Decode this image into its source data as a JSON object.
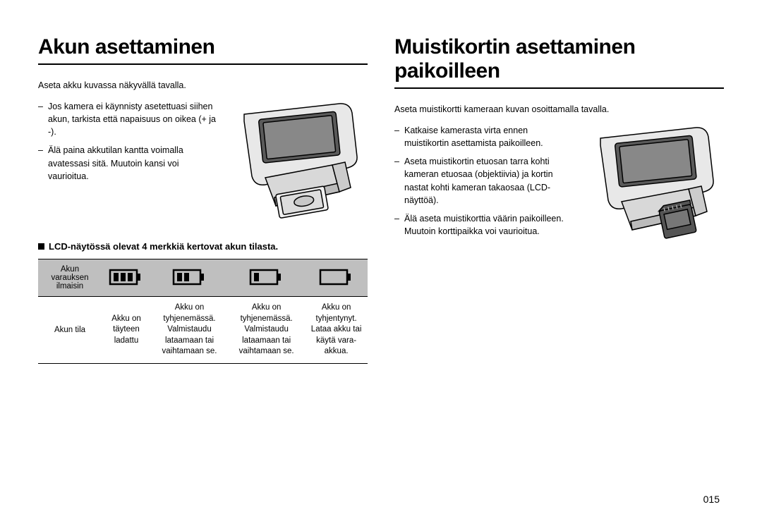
{
  "pageNumber": "015",
  "left": {
    "heading": "Akun asettaminen",
    "intro": "Aseta akku kuvassa näkyvällä tavalla.",
    "bullets": [
      "Jos kamera ei käynnisty asetettuasi siihen akun, tarkista että napaisuus on oikea (+ ja -).",
      "Älä paina akkutilan kantta voimalla avatessasi sitä. Muutoin kansi voi vaurioitua."
    ],
    "subheading": "LCD-näytössä olevat 4 merkkiä kertovat akun tilasta.",
    "table": {
      "row1_label": "Akun varauksen ilmaisin",
      "row2_label": "Akun tila",
      "cells": [
        "Akku on täyteen ladattu",
        "Akku on tyhjenemässä. Valmistaudu lataamaan tai vaihtamaan se.",
        "Akku on tyhjenemässä. Valmistaudu lataamaan tai vaihtamaan se.",
        "Akku on tyhjentynyt. Lataa akku tai käytä vara-akkua."
      ],
      "battery_levels": [
        3,
        2,
        1,
        0
      ],
      "header_bg": "#bfbfbf"
    }
  },
  "right": {
    "heading": "Muistikortin asettaminen paikoilleen",
    "intro": "Aseta muistikortti kameraan kuvan osoittamalla tavalla.",
    "bullets": [
      "Katkaise kamerasta virta ennen muistikortin asettamista paikoilleen.",
      "Aseta muistikortin etuosan tarra kohti kameran etuosaa (objektiivia) ja kortin nastat kohti kameran takaosaa (LCD-näyttöä).",
      "Älä aseta muistikorttia väärin paikoilleen.\nMuutoin korttipaikka voi vaurioitua."
    ]
  }
}
